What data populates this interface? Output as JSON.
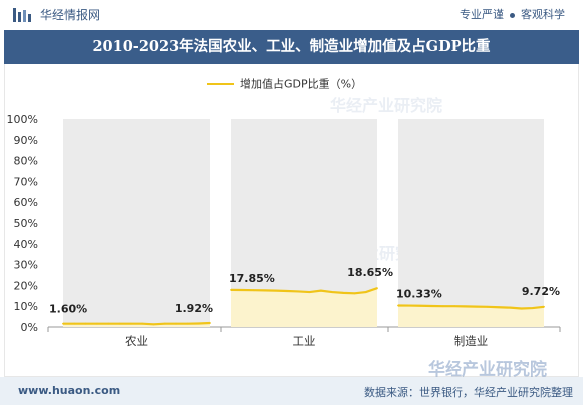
{
  "header": {
    "site_name": "华经情报网",
    "slogan_left": "专业严谨",
    "slogan_right": "客观科学"
  },
  "title_bar": {
    "title": "2010-2023年法国农业、工业、制造业增加值及占GDP比重"
  },
  "legend": {
    "label": "增加值占GDP比重（%）",
    "color": "#f0c419"
  },
  "footer": {
    "url": "www.huaon.com",
    "source": "数据来源：世界银行，华经产业研究院整理"
  },
  "watermark": {
    "text": "华经产业研究院"
  },
  "colors": {
    "title_bg": "#3a5d8a",
    "panel_bg": "#ebebeb",
    "line": "#f0c419",
    "area": "#fcf3cd",
    "brand_text": "#3b5a83"
  },
  "chart_data": {
    "type": "line",
    "title": "2010-2023年法国农业、工业、制造业增加值及占GDP比重",
    "ylabel": "",
    "xlabel": "",
    "ylim": [
      0,
      100
    ],
    "yticks": [
      "0%",
      "10%",
      "20%",
      "30%",
      "40%",
      "50%",
      "60%",
      "70%",
      "80%",
      "90%",
      "100%"
    ],
    "grid": false,
    "legend_position": "top-center",
    "facets": [
      "农业",
      "工业",
      "制造业"
    ],
    "series": [
      {
        "name": "增加值占GDP比重（%）",
        "facet": "农业",
        "values": [
          1.6,
          1.6,
          1.6,
          1.6,
          1.6,
          1.6,
          1.6,
          1.6,
          1.3,
          1.6,
          1.6,
          1.6,
          1.7,
          1.92
        ],
        "labels": [
          "1.60%",
          "1.92%"
        ]
      },
      {
        "name": "增加值占GDP比重（%）",
        "facet": "工业",
        "values": [
          17.85,
          17.8,
          17.7,
          17.6,
          17.5,
          17.3,
          17.1,
          16.8,
          17.5,
          16.8,
          16.4,
          16.2,
          16.8,
          18.65
        ],
        "labels": [
          "17.85%",
          "18.65%"
        ]
      },
      {
        "name": "增加值占GDP比重（%）",
        "facet": "制造业",
        "values": [
          10.33,
          10.3,
          10.2,
          10.1,
          10.0,
          10.0,
          9.9,
          9.8,
          9.7,
          9.5,
          9.3,
          8.9,
          9.1,
          9.72
        ],
        "labels": [
          "10.33%",
          "9.72%"
        ]
      }
    ]
  }
}
